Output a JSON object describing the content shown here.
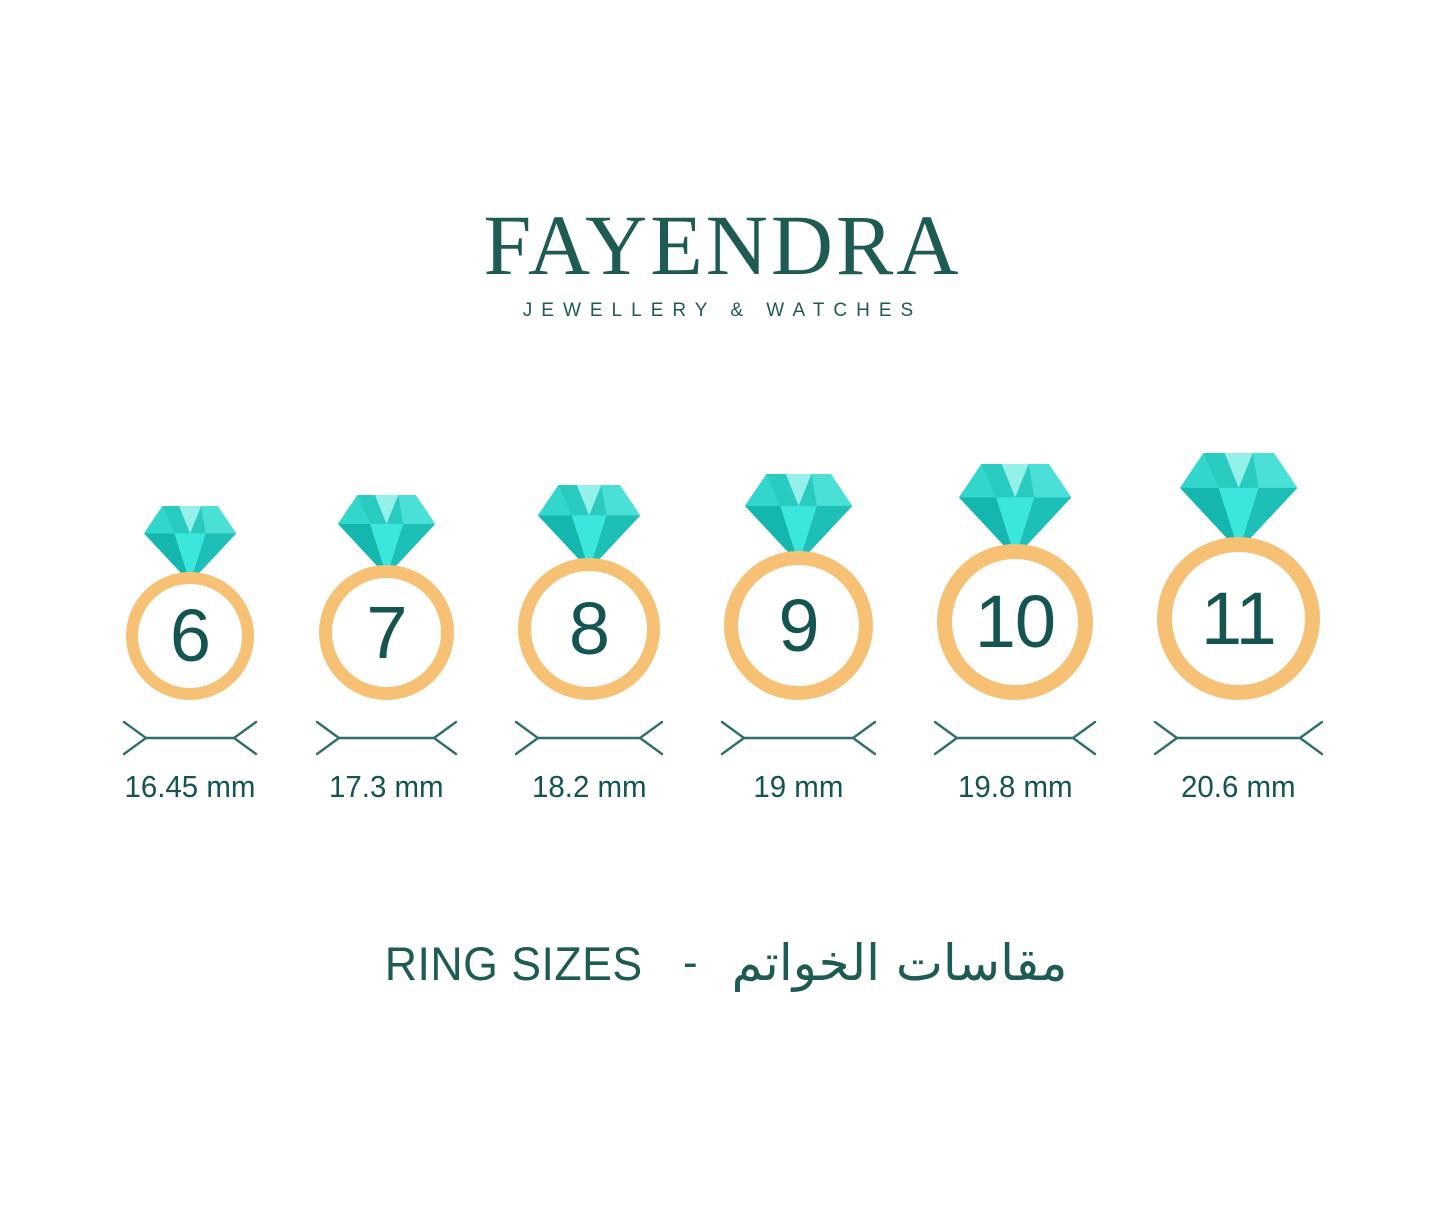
{
  "brand": {
    "name": "FAYENDRA",
    "tagline": "JEWELLERY & WATCHES"
  },
  "rings": [
    {
      "size": "6",
      "diameter": "16.45 mm"
    },
    {
      "size": "7",
      "diameter": "17.3 mm"
    },
    {
      "size": "8",
      "diameter": "18.2 mm"
    },
    {
      "size": "9",
      "diameter": "19 mm"
    },
    {
      "size": "10",
      "diameter": "19.8 mm"
    },
    {
      "size": "11",
      "diameter": "20.6 mm"
    }
  ],
  "caption": {
    "en": "RING SIZES",
    "dash": "-",
    "ar": "مقاسات الخواتم"
  },
  "colors": {
    "background": "#FFFFFF",
    "brand_teal": "#1E5B53",
    "number_teal": "#155551",
    "band_gold": "#F6C174",
    "dimension_line": "#2E6F6B",
    "diamond_base": "#29CBC1",
    "diamond_crown_left": "#33D6CB",
    "diamond_crown_center": "#93F1EA",
    "diamond_crown_right": "#4ADFD7",
    "diamond_pavilion_left": "#14B6AE",
    "diamond_pavilion_right": "#1EBFB7",
    "diamond_pavilion_center": "#3BE6DD"
  }
}
